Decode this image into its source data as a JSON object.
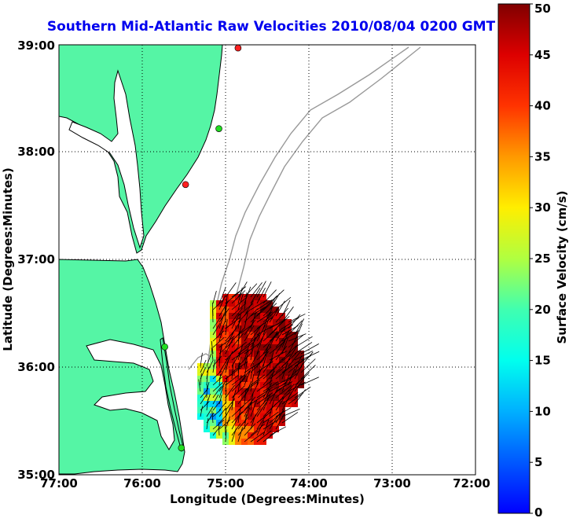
{
  "title": "Southern Mid-Atlantic Raw Velocities 2010/08/04 0200 GMT",
  "colors": {
    "title": "#0000ee",
    "land": "#55f5a5",
    "coast": "#000000",
    "grid": "#000000",
    "isobath": "#999999"
  },
  "map": {
    "lon_range": [
      -77,
      -72
    ],
    "lat_range": [
      35,
      39
    ],
    "x_ticks": [
      "77:00",
      "76:00",
      "75:00",
      "74:00",
      "73:00",
      "72:00"
    ],
    "y_ticks": [
      "35:00",
      "36:00",
      "37:00",
      "38:00",
      "39:00"
    ],
    "xlabel": "Longitude (Degrees:Minutes)",
    "ylabel": "Latitude (Degrees:Minutes)",
    "grid": "dotted"
  },
  "colorbar": {
    "label": "Surface Velocity (cm/s)",
    "range": [
      0,
      50
    ],
    "ticks": [
      "0",
      "5",
      "10",
      "15",
      "20",
      "25",
      "30",
      "35",
      "40",
      "45",
      "50"
    ],
    "colormap": "jet"
  },
  "stations": [
    {
      "lon": -74.85,
      "lat": 38.97,
      "status": "red"
    },
    {
      "lon": -75.08,
      "lat": 38.22,
      "status": "green"
    },
    {
      "lon": -75.48,
      "lat": 37.7,
      "status": "red"
    },
    {
      "lon": -75.73,
      "lat": 36.19,
      "status": "green"
    },
    {
      "lon": -75.53,
      "lat": 35.25,
      "status": "green"
    }
  ]
}
